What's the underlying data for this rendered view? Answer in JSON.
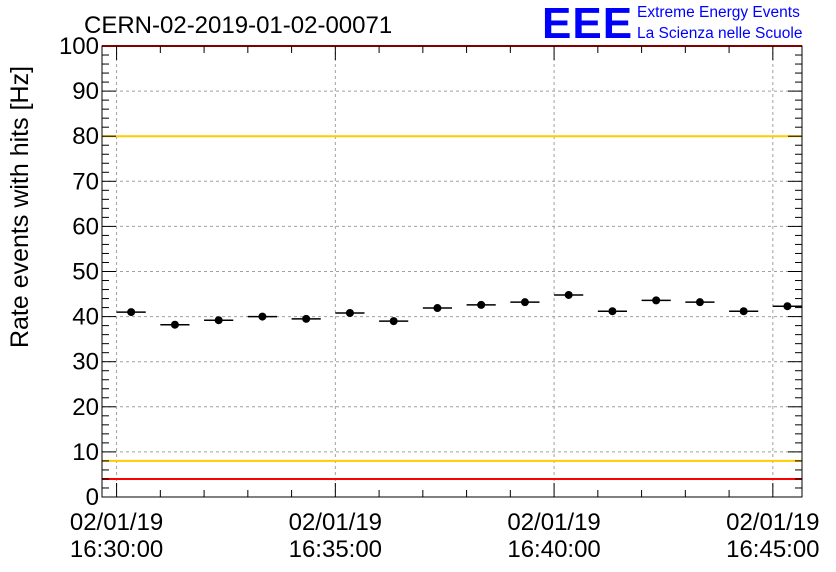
{
  "header": {
    "run_id": "CERN-02-2019-01-02-00071",
    "logo_text": "EEE",
    "logo_line1": "Extreme Energy Events",
    "logo_line2": "La Scienza nelle Scuole"
  },
  "colors": {
    "data": "#000000",
    "red_limit": "#ff0000",
    "yellow_limit": "#ffcc00",
    "logo": "#0000ff",
    "grid": "#a0a0a0"
  },
  "chart_data": {
    "type": "scatter",
    "title": "CERN-02-2019-01-02-00071",
    "ylabel": "Rate events with hits [Hz]",
    "xlabel": "",
    "ylim": [
      0,
      100
    ],
    "xlim": [
      "16:29:40",
      "16:45:40"
    ],
    "grid": true,
    "y_ticks": [
      0,
      10,
      20,
      30,
      40,
      50,
      60,
      70,
      80,
      90,
      100
    ],
    "x_ticks": [
      {
        "time": "16:30:00",
        "date": "02/01/19",
        "label": "16:30:00"
      },
      {
        "time": "16:35:00",
        "date": "02/01/19",
        "label": "16:35:00"
      },
      {
        "time": "16:40:00",
        "date": "02/01/19",
        "label": "16:40:00"
      },
      {
        "time": "16:45:00",
        "date": "02/01/19",
        "label": "16:45:00"
      }
    ],
    "series": [
      {
        "points": [
          {
            "x": "16:30:20",
            "y": 41.0
          },
          {
            "x": "16:31:20",
            "y": 38.2
          },
          {
            "x": "16:32:20",
            "y": 39.2
          },
          {
            "x": "16:33:20",
            "y": 40.0
          },
          {
            "x": "16:34:20",
            "y": 39.5
          },
          {
            "x": "16:35:20",
            "y": 40.8
          },
          {
            "x": "16:36:20",
            "y": 39.0
          },
          {
            "x": "16:37:20",
            "y": 41.9
          },
          {
            "x": "16:38:20",
            "y": 42.6
          },
          {
            "x": "16:39:20",
            "y": 43.2
          },
          {
            "x": "16:40:20",
            "y": 44.8
          },
          {
            "x": "16:41:20",
            "y": 41.2
          },
          {
            "x": "16:42:20",
            "y": 43.6
          },
          {
            "x": "16:43:20",
            "y": 43.2
          },
          {
            "x": "16:44:20",
            "y": 41.2
          },
          {
            "x": "16:45:20",
            "y": 42.3
          }
        ],
        "bin_halfwidth_seconds": 20
      }
    ],
    "reference_lines": [
      {
        "y": 100,
        "color": "red"
      },
      {
        "y": 80,
        "color": "yellow"
      },
      {
        "y": 8,
        "color": "yellow"
      },
      {
        "y": 4,
        "color": "red"
      }
    ]
  }
}
